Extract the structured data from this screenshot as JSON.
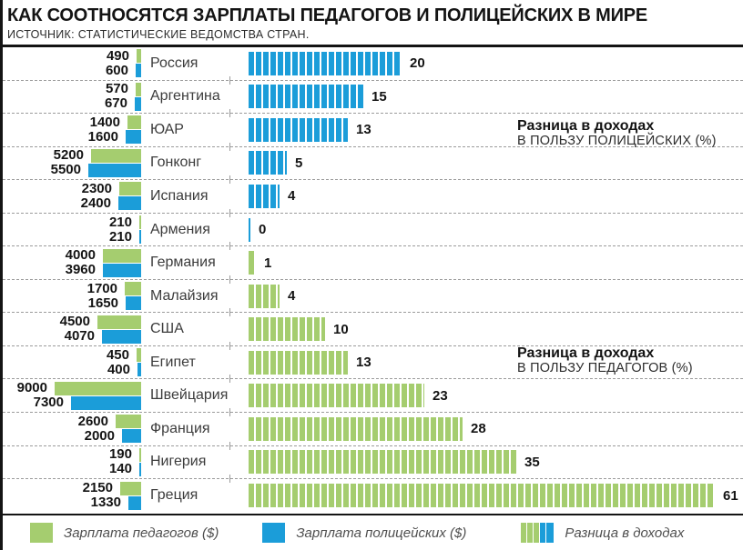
{
  "header": {
    "title": "КАК СООТНОСЯТСЯ ЗАРПЛАТЫ ПЕДАГОГОВ И ПОЛИЦЕЙСКИХ В МИРЕ",
    "source": "ИСТОЧНИК: СТАТИСТИЧЕСКИЕ ВЕДОМСТВА СТРАН."
  },
  "annotations": {
    "police": {
      "line1": "Разница в доходах",
      "line2": "В ПОЛЬЗУ ПОЛИЦЕЙСКИХ (%)"
    },
    "teacher": {
      "line1": "Разница в доходах",
      "line2": "В ПОЛЬЗУ ПЕДАГОГОВ (%)"
    }
  },
  "legend": {
    "teacher_label": "Зарплата педагогов ($)",
    "police_label": "Зарплата полицейских ($)",
    "diff_label": "Разница в доходах"
  },
  "colors": {
    "teacher_green": "#a5cd6f",
    "police_blue": "#1b9dd9",
    "frame_black": "#141414",
    "separator_gray": "#9b9b9b"
  },
  "chart_data": {
    "type": "bar",
    "orientation": "horizontal",
    "title": "КАК СООТНОСЯТСЯ ЗАРПЛАТЫ ПЕДАГОГОВ И ПОЛИЦЕЙСКИХ В МИРЕ",
    "source": "ИСТОЧНИК: СТАТИСТИЧЕСКИЕ ВЕДОМСТВА СТРАН.",
    "diff_axis_max": 61,
    "salary_axis_max": 9000,
    "rows": [
      {
        "country": "Россия",
        "teacher_salary": 490,
        "police_salary": 600,
        "diff_percent": 20,
        "favor": "police"
      },
      {
        "country": "Аргентина",
        "teacher_salary": 570,
        "police_salary": 670,
        "diff_percent": 15,
        "favor": "police"
      },
      {
        "country": "ЮАР",
        "teacher_salary": 1400,
        "police_salary": 1600,
        "diff_percent": 13,
        "favor": "police"
      },
      {
        "country": "Гонконг",
        "teacher_salary": 5200,
        "police_salary": 5500,
        "diff_percent": 5,
        "favor": "police"
      },
      {
        "country": "Испания",
        "teacher_salary": 2300,
        "police_salary": 2400,
        "diff_percent": 4,
        "favor": "police"
      },
      {
        "country": "Армения",
        "teacher_salary": 210,
        "police_salary": 210,
        "diff_percent": 0,
        "favor": "police"
      },
      {
        "country": "Германия",
        "teacher_salary": 4000,
        "police_salary": 3960,
        "diff_percent": 1,
        "favor": "teachers"
      },
      {
        "country": "Малайзия",
        "teacher_salary": 1700,
        "police_salary": 1650,
        "diff_percent": 4,
        "favor": "teachers"
      },
      {
        "country": "США",
        "teacher_salary": 4500,
        "police_salary": 4070,
        "diff_percent": 10,
        "favor": "teachers"
      },
      {
        "country": "Египет",
        "teacher_salary": 450,
        "police_salary": 400,
        "diff_percent": 13,
        "favor": "teachers"
      },
      {
        "country": "Швейцария",
        "teacher_salary": 9000,
        "police_salary": 7300,
        "diff_percent": 23,
        "favor": "teachers"
      },
      {
        "country": "Франция",
        "teacher_salary": 2600,
        "police_salary": 2000,
        "diff_percent": 28,
        "favor": "teachers"
      },
      {
        "country": "Нигерия",
        "teacher_salary": 190,
        "police_salary": 140,
        "diff_percent": 35,
        "favor": "teachers"
      },
      {
        "country": "Греция",
        "teacher_salary": 2150,
        "police_salary": 1330,
        "diff_percent": 61,
        "favor": "teachers"
      }
    ]
  }
}
